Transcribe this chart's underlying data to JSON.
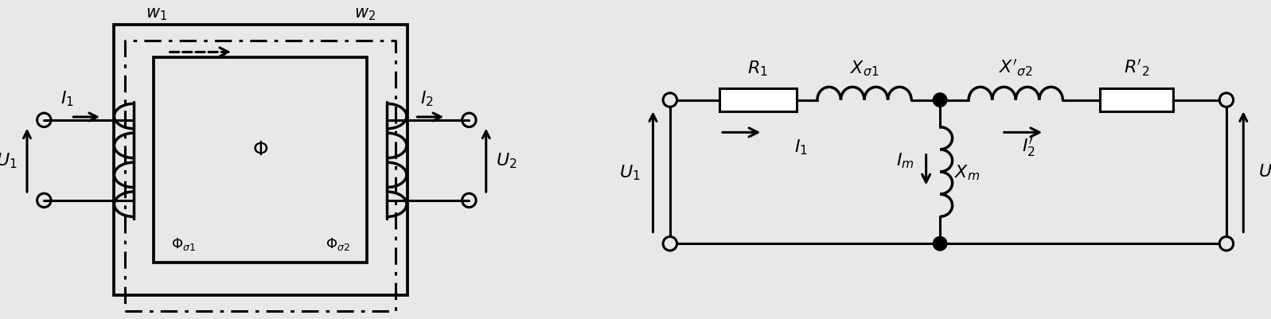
{
  "bg_color": "#e8e8e8",
  "line_color": "#000000",
  "line_width": 2.2,
  "font_size": 14,
  "fig_width": 15.97,
  "fig_height": 4.02
}
